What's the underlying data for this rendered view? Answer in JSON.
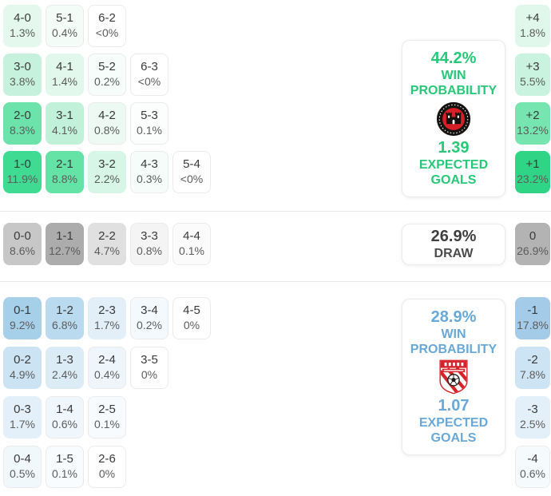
{
  "chart_data": {
    "type": "heatmap",
    "title": "Correct score probability matrix with win margins, win probabilities and expected goals",
    "home": {
      "win_probability": "44.2%",
      "win_probability_label": "WIN PROBABILITY",
      "expected_goals": "1.39",
      "expected_goals_label": "EXPECTED GOALS",
      "badge": "bohemian-fc-crest",
      "accent_color": "#27c878",
      "score_rows": [
        [
          {
            "score": "4-0",
            "pct": "1.3%",
            "color": "#e4f8ee"
          },
          {
            "score": "5-1",
            "pct": "0.4%",
            "color": "#f4fcf8"
          },
          {
            "score": "6-2",
            "pct": "<0%",
            "color": "#ffffff"
          }
        ],
        [
          {
            "score": "3-0",
            "pct": "3.8%",
            "color": "#c6f2dd"
          },
          {
            "score": "4-1",
            "pct": "1.4%",
            "color": "#e2f8ed"
          },
          {
            "score": "5-2",
            "pct": "0.2%",
            "color": "#f7fdfa"
          },
          {
            "score": "6-3",
            "pct": "<0%",
            "color": "#ffffff"
          }
        ],
        [
          {
            "score": "2-0",
            "pct": "8.3%",
            "color": "#6ce3ab"
          },
          {
            "score": "3-1",
            "pct": "4.1%",
            "color": "#c2f1da"
          },
          {
            "score": "4-2",
            "pct": "0.8%",
            "color": "#ecfaf3"
          },
          {
            "score": "5-3",
            "pct": "0.1%",
            "color": "#fbfefc"
          }
        ],
        [
          {
            "score": "1-0",
            "pct": "11.9%",
            "color": "#40db92"
          },
          {
            "score": "2-1",
            "pct": "8.8%",
            "color": "#65e2a6"
          },
          {
            "score": "3-2",
            "pct": "2.2%",
            "color": "#d7f6e7"
          },
          {
            "score": "4-3",
            "pct": "0.3%",
            "color": "#f5fcf9"
          },
          {
            "score": "5-4",
            "pct": "<0%",
            "color": "#ffffff"
          }
        ]
      ],
      "margins": [
        {
          "margin": "+4",
          "pct": "1.8%",
          "color": "#dff8eb"
        },
        {
          "margin": "+3",
          "pct": "5.5%",
          "color": "#c9f3de"
        },
        {
          "margin": "+2",
          "pct": "13.2%",
          "color": "#76e5b0"
        },
        {
          "margin": "+1",
          "pct": "23.2%",
          "color": "#2fd585"
        }
      ]
    },
    "draw": {
      "probability": "26.9%",
      "label": "DRAW",
      "accent_color": "#3f3f3f",
      "score_rows": [
        [
          {
            "score": "0-0",
            "pct": "8.6%",
            "color": "#c7c7c7"
          },
          {
            "score": "1-1",
            "pct": "12.7%",
            "color": "#acacac"
          },
          {
            "score": "2-2",
            "pct": "4.7%",
            "color": "#e0e0e0"
          },
          {
            "score": "3-3",
            "pct": "0.8%",
            "color": "#f4f4f4"
          },
          {
            "score": "4-4",
            "pct": "0.1%",
            "color": "#fbfbfb"
          }
        ]
      ],
      "margins": [
        {
          "margin": "0",
          "pct": "26.9%",
          "color": "#b3b3b3"
        }
      ]
    },
    "away": {
      "win_probability": "28.9%",
      "win_probability_label": "WIN PROBABILITY",
      "expected_goals": "1.07",
      "expected_goals_label": "EXPECTED GOALS",
      "badge": "derry-city-crest",
      "accent_color": "#68a9d9",
      "score_rows": [
        [
          {
            "score": "0-1",
            "pct": "9.2%",
            "color": "#a6cfe9"
          },
          {
            "score": "1-2",
            "pct": "6.8%",
            "color": "#badaef"
          },
          {
            "score": "2-3",
            "pct": "1.7%",
            "color": "#e2eff8"
          },
          {
            "score": "3-4",
            "pct": "0.2%",
            "color": "#f4f9fd"
          },
          {
            "score": "4-5",
            "pct": "0%",
            "color": "#ffffff"
          }
        ],
        [
          {
            "score": "0-2",
            "pct": "4.9%",
            "color": "#cbe3f3"
          },
          {
            "score": "1-3",
            "pct": "2.4%",
            "color": "#dcecf7"
          },
          {
            "score": "2-4",
            "pct": "0.4%",
            "color": "#eff6fb"
          },
          {
            "score": "3-5",
            "pct": "0%",
            "color": "#ffffff"
          }
        ],
        [
          {
            "score": "0-3",
            "pct": "1.7%",
            "color": "#e4f0f9"
          },
          {
            "score": "1-4",
            "pct": "0.6%",
            "color": "#eff6fc"
          },
          {
            "score": "2-5",
            "pct": "0.1%",
            "color": "#f8fbfe"
          }
        ],
        [
          {
            "score": "0-4",
            "pct": "0.5%",
            "color": "#f1f8fc"
          },
          {
            "score": "1-5",
            "pct": "0.1%",
            "color": "#f8fcfe"
          },
          {
            "score": "2-6",
            "pct": "0%",
            "color": "#ffffff"
          }
        ]
      ],
      "margins": [
        {
          "margin": "-1",
          "pct": "17.8%",
          "color": "#a4cbe8"
        },
        {
          "margin": "-2",
          "pct": "7.8%",
          "color": "#cde4f4"
        },
        {
          "margin": "-3",
          "pct": "2.5%",
          "color": "#e4f0f9"
        },
        {
          "margin": "-4",
          "pct": "0.6%",
          "color": "#f5fafd"
        }
      ]
    }
  }
}
